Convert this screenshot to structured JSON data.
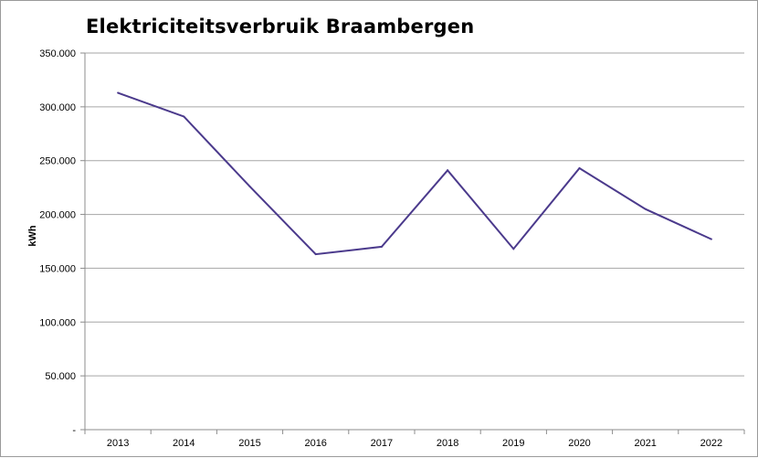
{
  "chart_data": {
    "type": "line",
    "title": "Elektriciteitsverbruik Braambergen",
    "xlabel": "",
    "ylabel": "kWh",
    "categories": [
      "2013",
      "2014",
      "2015",
      "2016",
      "2017",
      "2018",
      "2019",
      "2020",
      "2021",
      "2022"
    ],
    "series": [
      {
        "values": [
          313000,
          291000,
          226000,
          163000,
          170000,
          241000,
          168000,
          243000,
          205000,
          177000
        ]
      }
    ],
    "ylim": [
      0,
      350000
    ],
    "yticks": [
      0,
      50000,
      100000,
      150000,
      200000,
      250000,
      300000,
      350000
    ],
    "ytick_labels": [
      "-",
      "50.000",
      "100.000",
      "150.000",
      "200.000",
      "250.000",
      "300.000",
      "350.000"
    ],
    "grid": true,
    "legend": "none",
    "colors": {
      "line": "#4b3a8c",
      "grid": "#a6a6a6",
      "axis": "#8c8c8c"
    }
  }
}
